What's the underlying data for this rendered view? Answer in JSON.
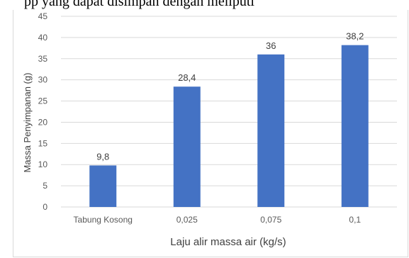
{
  "header": {
    "text": "pp yang dapat disimpan dengan meliputi"
  },
  "chart_data": {
    "type": "bar",
    "categories": [
      "Tabung Kosong",
      "0,025",
      "0,075",
      "0,1"
    ],
    "values": [
      9.8,
      28.4,
      36,
      38.2
    ],
    "data_labels": [
      "9,8",
      "28,4",
      "36",
      "38,2"
    ],
    "xlabel": "Laju alir massa air (kg/s)",
    "ylabel": "Massa Penyimpanan (g)",
    "ylim": [
      0,
      45
    ],
    "yticks": [
      0,
      5,
      10,
      15,
      20,
      25,
      30,
      35,
      40,
      45
    ],
    "grid": true,
    "bar_color": "#4472c4",
    "grid_color": "#d9d9d9",
    "legend": "none"
  }
}
